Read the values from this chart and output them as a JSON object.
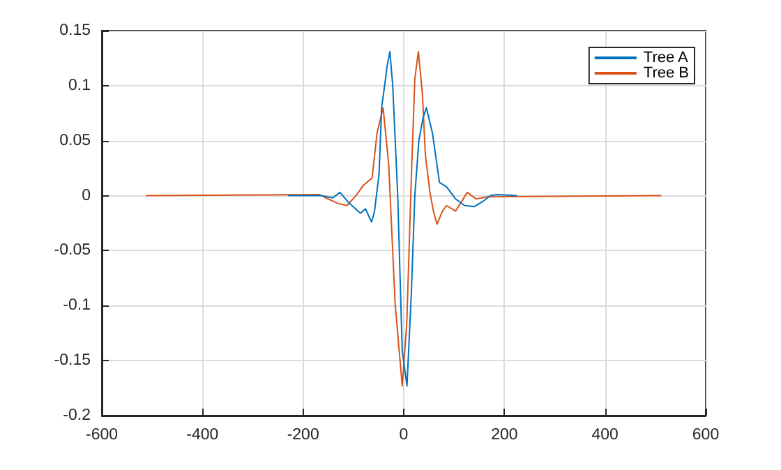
{
  "chart_data": {
    "type": "line",
    "xlim": [
      -600,
      600
    ],
    "xticks": [
      -600,
      -400,
      -200,
      0,
      200,
      400,
      600
    ],
    "ylim": [
      -0.2,
      0.15
    ],
    "yticks": [
      -0.2,
      -0.15,
      -0.1,
      -0.05,
      0,
      0.05,
      0.1,
      0.15
    ],
    "grid": true,
    "legend": "top right",
    "marker": "none",
    "line_style": "solid",
    "series": [
      {
        "name": "Tree A",
        "color": "#0072bd",
        "x": [
          -230,
          -182,
          -164,
          -141,
          -127,
          -108,
          -86,
          -76,
          -64,
          -58,
          -49,
          -44,
          -38,
          -33,
          -27.6,
          -22,
          -12,
          -3,
          6.4,
          15,
          22,
          30,
          38,
          45,
          57,
          71,
          85,
          103,
          121,
          140,
          158,
          172,
          186,
          225
        ],
        "values": [
          0,
          0,
          0,
          -0.002,
          0.003,
          -0.007,
          -0.016,
          -0.012,
          -0.024,
          -0.014,
          0.02,
          0.08,
          0.1,
          0.118,
          0.131,
          0.101,
          0,
          -0.141,
          -0.173,
          -0.09,
          0,
          0.05,
          0.07,
          0.08,
          0.057,
          0.012,
          0.008,
          -0.003,
          -0.009,
          -0.01,
          -0.005,
          0,
          0.001,
          0
        ]
      },
      {
        "name": "Tree B",
        "color": "#d95319",
        "x": [
          -512,
          -168,
          -155,
          -131,
          -113,
          -95,
          -81,
          -63,
          -53,
          -41,
          -30,
          -17,
          -3,
          6,
          16,
          22,
          29,
          37,
          43,
          52,
          59,
          66,
          77,
          85,
          103,
          117,
          126,
          144,
          167,
          512
        ],
        "values": [
          0,
          0.001,
          -0.002,
          -0.007,
          -0.009,
          0,
          0.009,
          0.016,
          0.057,
          0.08,
          0.029,
          -0.099,
          -0.173,
          -0.116,
          0.029,
          0.106,
          0.131,
          0.093,
          0.037,
          0.003,
          -0.014,
          -0.026,
          -0.014,
          -0.009,
          -0.014,
          -0.004,
          0.003,
          -0.003,
          -0.001,
          0
        ]
      }
    ]
  }
}
